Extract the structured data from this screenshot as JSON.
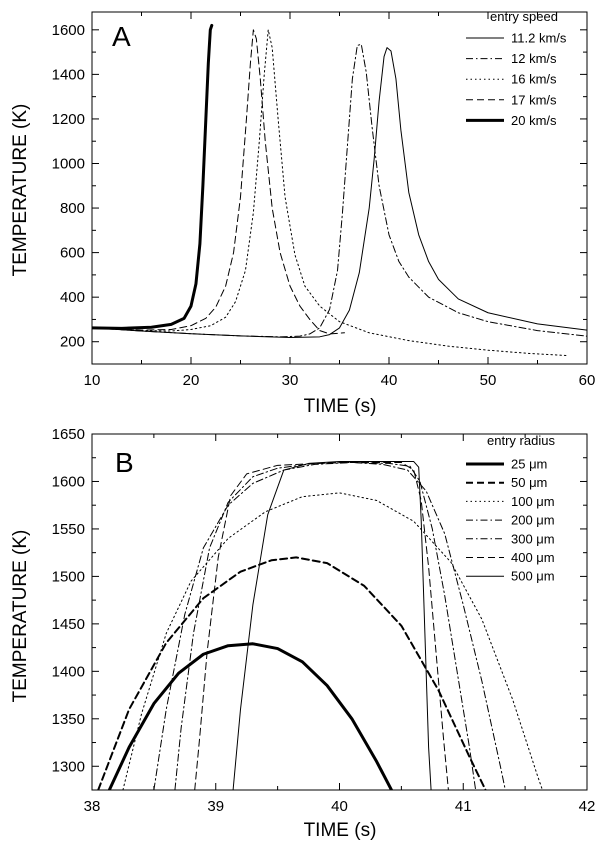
{
  "chart_data": [
    {
      "type": "line",
      "panel_label": "A",
      "xlabel": "TIME (s)",
      "ylabel": "TEMPERATURE (K)",
      "xlim": [
        10,
        60
      ],
      "ylim": [
        100,
        1680
      ],
      "xticks": [
        10,
        20,
        30,
        40,
        50,
        60
      ],
      "yticks": [
        200,
        400,
        600,
        800,
        1000,
        1200,
        1400,
        1600
      ],
      "legend_title": "entry speed",
      "legend_position": "top-right",
      "series": [
        {
          "name": "11.2 km/s",
          "style": "solid",
          "stroke_width": 1,
          "points": [
            [
              10,
              262
            ],
            [
              15,
              248
            ],
            [
              20,
              236
            ],
            [
              25,
              226
            ],
            [
              30,
              219
            ],
            [
              33,
              222
            ],
            [
              34,
              232
            ],
            [
              35,
              262
            ],
            [
              36,
              342
            ],
            [
              37,
              510
            ],
            [
              38,
              800
            ],
            [
              38.5,
              1020
            ],
            [
              39,
              1280
            ],
            [
              39.5,
              1480
            ],
            [
              39.8,
              1520
            ],
            [
              40.2,
              1505
            ],
            [
              40.7,
              1380
            ],
            [
              41.2,
              1150
            ],
            [
              42,
              870
            ],
            [
              43,
              680
            ],
            [
              44,
              560
            ],
            [
              45,
              480
            ],
            [
              47,
              392
            ],
            [
              50,
              330
            ],
            [
              55,
              280
            ],
            [
              60,
              252
            ]
          ]
        },
        {
          "name": "12 km/s",
          "style": "dashdot",
          "stroke_width": 1,
          "points": [
            [
              10,
              262
            ],
            [
              15,
              248
            ],
            [
              20,
              236
            ],
            [
              25,
              226
            ],
            [
              29,
              222
            ],
            [
              31,
              225
            ],
            [
              32,
              235
            ],
            [
              33,
              262
            ],
            [
              34,
              345
            ],
            [
              34.8,
              520
            ],
            [
              35.3,
              780
            ],
            [
              35.8,
              1080
            ],
            [
              36.3,
              1380
            ],
            [
              36.8,
              1530
            ],
            [
              37.2,
              1535
            ],
            [
              37.7,
              1410
            ],
            [
              38.3,
              1160
            ],
            [
              39,
              900
            ],
            [
              40,
              680
            ],
            [
              41,
              560
            ],
            [
              42,
              490
            ],
            [
              44,
              400
            ],
            [
              47,
              330
            ],
            [
              50,
              290
            ],
            [
              55,
              250
            ],
            [
              60,
              225
            ]
          ]
        },
        {
          "name": "16 km/s",
          "style": "dotted",
          "stroke_width": 1,
          "points": [
            [
              10,
              262
            ],
            [
              15,
              250
            ],
            [
              18,
              248
            ],
            [
              20,
              255
            ],
            [
              22,
              272
            ],
            [
              23.5,
              310
            ],
            [
              24.5,
              380
            ],
            [
              25.5,
              520
            ],
            [
              26.3,
              780
            ],
            [
              26.9,
              1100
            ],
            [
              27.4,
              1400
            ],
            [
              27.8,
              1600
            ],
            [
              28.2,
              1520
            ],
            [
              28.8,
              1200
            ],
            [
              29.5,
              850
            ],
            [
              30.5,
              590
            ],
            [
              31.5,
              450
            ],
            [
              33,
              360
            ],
            [
              35,
              290
            ],
            [
              38,
              240
            ],
            [
              42,
              205
            ],
            [
              46,
              180
            ],
            [
              50,
              162
            ],
            [
              54,
              148
            ],
            [
              58,
              138
            ]
          ]
        },
        {
          "name": "17 km/s",
          "style": "dashed",
          "stroke_width": 1,
          "points": [
            [
              10,
              262
            ],
            [
              15,
              252
            ],
            [
              18,
              255
            ],
            [
              20,
              272
            ],
            [
              21.5,
              305
            ],
            [
              22.5,
              355
            ],
            [
              23.5,
              450
            ],
            [
              24.3,
              600
            ],
            [
              25,
              850
            ],
            [
              25.6,
              1200
            ],
            [
              26,
              1450
            ],
            [
              26.3,
              1600
            ],
            [
              26.6,
              1560
            ],
            [
              27,
              1380
            ],
            [
              27.5,
              1100
            ],
            [
              28.2,
              800
            ],
            [
              29,
              600
            ],
            [
              30,
              450
            ],
            [
              31,
              360
            ],
            [
              32,
              300
            ],
            [
              33,
              250
            ],
            [
              34,
              235
            ],
            [
              35.5,
              240
            ]
          ]
        },
        {
          "name": "20 km/s",
          "style": "solid",
          "stroke_width": 3,
          "points": [
            [
              10,
              262
            ],
            [
              13,
              260
            ],
            [
              16,
              265
            ],
            [
              18,
              278
            ],
            [
              19.3,
              305
            ],
            [
              20,
              360
            ],
            [
              20.5,
              460
            ],
            [
              20.9,
              640
            ],
            [
              21.2,
              900
            ],
            [
              21.5,
              1200
            ],
            [
              21.75,
              1450
            ],
            [
              21.95,
              1600
            ],
            [
              22.1,
              1620
            ]
          ]
        }
      ]
    },
    {
      "type": "line",
      "panel_label": "B",
      "xlabel": "TIME (s)",
      "ylabel": "TEMPERATURE (K)",
      "xlim": [
        38,
        42
      ],
      "ylim": [
        1275,
        1650
      ],
      "xticks": [
        38,
        39,
        40,
        41,
        42
      ],
      "yticks": [
        1300,
        1350,
        1400,
        1450,
        1500,
        1550,
        1600,
        1650
      ],
      "legend_title": "entry radius",
      "legend_position": "top-right",
      "series": [
        {
          "name": "25 μm",
          "style": "solid",
          "stroke_width": 3,
          "points": [
            [
              38.14,
              1275
            ],
            [
              38.3,
              1320
            ],
            [
              38.5,
              1366
            ],
            [
              38.7,
              1398
            ],
            [
              38.9,
              1418
            ],
            [
              39.1,
              1427
            ],
            [
              39.3,
              1429
            ],
            [
              39.5,
              1424
            ],
            [
              39.7,
              1410
            ],
            [
              39.9,
              1385
            ],
            [
              40.1,
              1350
            ],
            [
              40.3,
              1305
            ],
            [
              40.42,
              1275
            ]
          ]
        },
        {
          "name": "50 μm",
          "style": "dashed",
          "stroke_width": 2,
          "points": [
            [
              38.05,
              1275
            ],
            [
              38.3,
              1360
            ],
            [
              38.6,
              1430
            ],
            [
              38.9,
              1477
            ],
            [
              39.2,
              1505
            ],
            [
              39.45,
              1517
            ],
            [
              39.65,
              1520
            ],
            [
              39.9,
              1514
            ],
            [
              40.2,
              1490
            ],
            [
              40.5,
              1448
            ],
            [
              40.8,
              1380
            ],
            [
              41.05,
              1310
            ],
            [
              41.18,
              1275
            ]
          ]
        },
        {
          "name": "100  μm",
          "style": "dotted",
          "stroke_width": 1,
          "points": [
            [
              38.25,
              1275
            ],
            [
              38.4,
              1355
            ],
            [
              38.6,
              1440
            ],
            [
              38.8,
              1495
            ],
            [
              39.1,
              1540
            ],
            [
              39.4,
              1568
            ],
            [
              39.7,
              1584
            ],
            [
              40,
              1588
            ],
            [
              40.3,
              1580
            ],
            [
              40.6,
              1558
            ],
            [
              40.9,
              1515
            ],
            [
              41.15,
              1455
            ],
            [
              41.4,
              1370
            ],
            [
              41.6,
              1290
            ],
            [
              41.64,
              1275
            ]
          ]
        },
        {
          "name": "200  μm",
          "style": "dashdot",
          "stroke_width": 1,
          "points": [
            [
              38.5,
              1275
            ],
            [
              38.6,
              1360
            ],
            [
              38.75,
              1460
            ],
            [
              38.9,
              1530
            ],
            [
              39.1,
              1575
            ],
            [
              39.3,
              1598
            ],
            [
              39.55,
              1612
            ],
            [
              39.8,
              1618
            ],
            [
              40.1,
              1620
            ],
            [
              40.35,
              1618
            ],
            [
              40.55,
              1612
            ],
            [
              40.7,
              1590
            ],
            [
              40.85,
              1545
            ],
            [
              41,
              1470
            ],
            [
              41.15,
              1390
            ],
            [
              41.3,
              1300
            ],
            [
              41.34,
              1275
            ]
          ]
        },
        {
          "name": "300  μm",
          "style": "dashdot",
          "stroke_width": 1,
          "points": [
            [
              38.67,
              1275
            ],
            [
              38.72,
              1340
            ],
            [
              38.82,
              1440
            ],
            [
              38.95,
              1530
            ],
            [
              39.1,
              1578
            ],
            [
              39.3,
              1605
            ],
            [
              39.5,
              1614
            ],
            [
              39.8,
              1619
            ],
            [
              40.1,
              1620
            ],
            [
              40.4,
              1619
            ],
            [
              40.57,
              1616
            ],
            [
              40.65,
              1600
            ],
            [
              40.75,
              1550
            ],
            [
              40.85,
              1480
            ],
            [
              40.95,
              1400
            ],
            [
              41.05,
              1320
            ],
            [
              41.1,
              1275
            ]
          ]
        },
        {
          "name": "400  μm",
          "style": "dashed",
          "stroke_width": 1,
          "points": [
            [
              38.83,
              1275
            ],
            [
              38.87,
              1330
            ],
            [
              38.93,
              1420
            ],
            [
              39.02,
              1520
            ],
            [
              39.12,
              1585
            ],
            [
              39.25,
              1608
            ],
            [
              39.5,
              1617
            ],
            [
              40,
              1620
            ],
            [
              40.5,
              1620
            ],
            [
              40.6,
              1612
            ],
            [
              40.66,
              1580
            ],
            [
              40.72,
              1510
            ],
            [
              40.78,
              1420
            ],
            [
              40.84,
              1330
            ],
            [
              40.88,
              1275
            ]
          ]
        },
        {
          "name": "500  μm",
          "style": "solid",
          "stroke_width": 1,
          "points": [
            [
              39.14,
              1275
            ],
            [
              39.2,
              1360
            ],
            [
              39.3,
              1470
            ],
            [
              39.42,
              1565
            ],
            [
              39.55,
              1612
            ],
            [
              39.75,
              1619
            ],
            [
              40,
              1621
            ],
            [
              40.6,
              1621
            ],
            [
              40.64,
              1615
            ],
            [
              40.66,
              1560
            ],
            [
              40.69,
              1440
            ],
            [
              40.72,
              1320
            ],
            [
              40.74,
              1275
            ]
          ]
        }
      ]
    }
  ]
}
